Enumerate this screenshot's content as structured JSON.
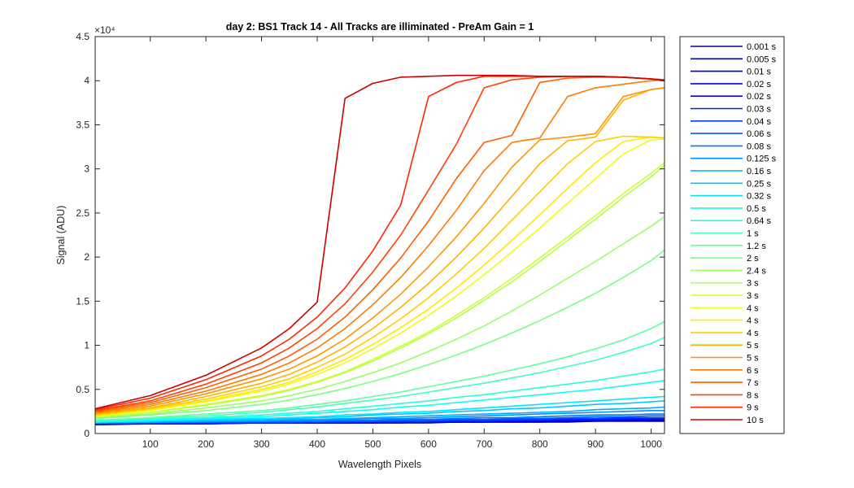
{
  "chart_data": {
    "type": "line",
    "title": "day 2: BS1  Track 14 - All Tracks are illiminated - PreAm Gain = 1",
    "xlabel": "Wavelength Pixels",
    "ylabel": "Signal (ADU)",
    "y_exponent": "×10⁴",
    "xlim": [
      1,
      1024
    ],
    "ylim": [
      0,
      4.5
    ],
    "xticks": [
      100,
      200,
      300,
      400,
      500,
      600,
      700,
      800,
      900,
      1000
    ],
    "yticks": [
      0,
      0.5,
      1,
      1.5,
      2,
      2.5,
      3,
      3.5,
      4,
      4.5
    ],
    "ytick_labels": [
      "0",
      "0.5",
      "1",
      "1.5",
      "2",
      "2.5",
      "3",
      "3.5",
      "4",
      "4.5"
    ],
    "legend_position": "outside-right",
    "grid": false,
    "x": [
      1,
      100,
      200,
      300,
      350,
      400,
      450,
      500,
      550,
      600,
      650,
      700,
      750,
      800,
      850,
      900,
      950,
      1000,
      1024
    ],
    "series": [
      {
        "name": "0.001 s",
        "color": "#00008f",
        "values": [
          0.1,
          0.11,
          0.11,
          0.12,
          0.12,
          0.12,
          0.12,
          0.12,
          0.12,
          0.12,
          0.13,
          0.13,
          0.13,
          0.13,
          0.13,
          0.14,
          0.14,
          0.14,
          0.14
        ]
      },
      {
        "name": "0.005 s",
        "color": "#0000a8",
        "values": [
          0.11,
          0.11,
          0.11,
          0.12,
          0.12,
          0.12,
          0.12,
          0.12,
          0.12,
          0.13,
          0.13,
          0.13,
          0.13,
          0.13,
          0.14,
          0.14,
          0.14,
          0.14,
          0.14
        ]
      },
      {
        "name": "0.01 s",
        "color": "#0000c4",
        "values": [
          0.11,
          0.11,
          0.12,
          0.12,
          0.12,
          0.12,
          0.12,
          0.12,
          0.13,
          0.13,
          0.13,
          0.13,
          0.14,
          0.14,
          0.14,
          0.14,
          0.15,
          0.15,
          0.15
        ]
      },
      {
        "name": "0.02 s",
        "color": "#0000e0",
        "values": [
          0.11,
          0.11,
          0.12,
          0.12,
          0.12,
          0.12,
          0.12,
          0.13,
          0.13,
          0.13,
          0.13,
          0.14,
          0.14,
          0.14,
          0.15,
          0.15,
          0.15,
          0.16,
          0.16
        ]
      },
      {
        "name": "0.02 s",
        "color": "#0004ff",
        "values": [
          0.11,
          0.12,
          0.12,
          0.12,
          0.12,
          0.12,
          0.13,
          0.13,
          0.13,
          0.13,
          0.14,
          0.14,
          0.14,
          0.15,
          0.15,
          0.15,
          0.16,
          0.16,
          0.16
        ]
      },
      {
        "name": "0.03 s",
        "color": "#0020ff",
        "values": [
          0.11,
          0.12,
          0.12,
          0.12,
          0.12,
          0.13,
          0.13,
          0.13,
          0.13,
          0.14,
          0.14,
          0.14,
          0.15,
          0.15,
          0.16,
          0.16,
          0.17,
          0.17,
          0.17
        ]
      },
      {
        "name": "0.04 s",
        "color": "#003cff",
        "values": [
          0.12,
          0.12,
          0.12,
          0.13,
          0.13,
          0.13,
          0.13,
          0.14,
          0.14,
          0.14,
          0.15,
          0.15,
          0.16,
          0.16,
          0.17,
          0.17,
          0.18,
          0.18,
          0.18
        ]
      },
      {
        "name": "0.06 s",
        "color": "#0058ff",
        "values": [
          0.12,
          0.12,
          0.13,
          0.13,
          0.13,
          0.14,
          0.14,
          0.14,
          0.15,
          0.15,
          0.16,
          0.16,
          0.17,
          0.17,
          0.18,
          0.19,
          0.19,
          0.2,
          0.2
        ]
      },
      {
        "name": "0.08 s",
        "color": "#0074ff",
        "values": [
          0.12,
          0.13,
          0.13,
          0.14,
          0.14,
          0.14,
          0.15,
          0.15,
          0.16,
          0.16,
          0.17,
          0.18,
          0.18,
          0.19,
          0.2,
          0.21,
          0.21,
          0.22,
          0.22
        ]
      },
      {
        "name": "0.125 s",
        "color": "#0090ff",
        "values": [
          0.12,
          0.13,
          0.14,
          0.14,
          0.15,
          0.15,
          0.16,
          0.17,
          0.17,
          0.18,
          0.19,
          0.2,
          0.21,
          0.22,
          0.23,
          0.24,
          0.25,
          0.26,
          0.26
        ]
      },
      {
        "name": "0.16 s",
        "color": "#00acff",
        "values": [
          0.12,
          0.13,
          0.14,
          0.15,
          0.16,
          0.16,
          0.17,
          0.18,
          0.19,
          0.2,
          0.21,
          0.22,
          0.23,
          0.24,
          0.25,
          0.27,
          0.28,
          0.29,
          0.3
        ]
      },
      {
        "name": "0.25 s",
        "color": "#00c8ff",
        "values": [
          0.13,
          0.14,
          0.15,
          0.16,
          0.17,
          0.18,
          0.19,
          0.21,
          0.22,
          0.23,
          0.25,
          0.26,
          0.28,
          0.29,
          0.31,
          0.33,
          0.34,
          0.36,
          0.37
        ]
      },
      {
        "name": "0.32 s",
        "color": "#00e4ff",
        "values": [
          0.13,
          0.14,
          0.16,
          0.17,
          0.18,
          0.19,
          0.21,
          0.22,
          0.24,
          0.25,
          0.27,
          0.29,
          0.31,
          0.33,
          0.35,
          0.37,
          0.39,
          0.41,
          0.42
        ]
      },
      {
        "name": "0.5 s",
        "color": "#0cfff4",
        "values": [
          0.13,
          0.15,
          0.17,
          0.19,
          0.21,
          0.23,
          0.25,
          0.27,
          0.3,
          0.32,
          0.35,
          0.38,
          0.41,
          0.44,
          0.47,
          0.5,
          0.54,
          0.58,
          0.6
        ]
      },
      {
        "name": "0.64 s",
        "color": "#28ffd8",
        "values": [
          0.14,
          0.16,
          0.18,
          0.21,
          0.23,
          0.25,
          0.28,
          0.31,
          0.34,
          0.37,
          0.41,
          0.44,
          0.48,
          0.52,
          0.56,
          0.6,
          0.65,
          0.7,
          0.73
        ]
      },
      {
        "name": "1 s",
        "color": "#44ffbc",
        "values": [
          0.15,
          0.17,
          0.2,
          0.24,
          0.27,
          0.3,
          0.34,
          0.38,
          0.42,
          0.47,
          0.52,
          0.57,
          0.63,
          0.69,
          0.76,
          0.83,
          0.92,
          1.02,
          1.09
        ]
      },
      {
        "name": "1.2 s",
        "color": "#60ffa0",
        "values": [
          0.15,
          0.18,
          0.22,
          0.26,
          0.29,
          0.33,
          0.37,
          0.42,
          0.47,
          0.53,
          0.59,
          0.65,
          0.72,
          0.79,
          0.87,
          0.96,
          1.06,
          1.19,
          1.27
        ]
      },
      {
        "name": "2 s",
        "color": "#7cff84",
        "values": [
          0.17,
          0.21,
          0.26,
          0.33,
          0.38,
          0.44,
          0.51,
          0.59,
          0.68,
          0.78,
          0.89,
          1.01,
          1.14,
          1.28,
          1.43,
          1.59,
          1.77,
          1.96,
          2.08
        ]
      },
      {
        "name": "2.4 s",
        "color": "#98ff68",
        "values": [
          0.18,
          0.22,
          0.29,
          0.37,
          0.43,
          0.5,
          0.59,
          0.69,
          0.8,
          0.93,
          1.07,
          1.22,
          1.39,
          1.57,
          1.76,
          1.95,
          2.15,
          2.35,
          2.46
        ]
      },
      {
        "name": "3 s",
        "color": "#b4ff4c",
        "values": [
          0.19,
          0.24,
          0.32,
          0.42,
          0.49,
          0.58,
          0.69,
          0.82,
          0.97,
          1.13,
          1.31,
          1.51,
          1.72,
          1.95,
          2.19,
          2.43,
          2.68,
          2.91,
          3.04
        ]
      },
      {
        "name": "3 s",
        "color": "#d0ff30",
        "values": [
          0.19,
          0.24,
          0.33,
          0.43,
          0.5,
          0.59,
          0.7,
          0.84,
          0.99,
          1.15,
          1.34,
          1.54,
          1.76,
          1.99,
          2.23,
          2.47,
          2.72,
          2.95,
          3.07
        ]
      },
      {
        "name": "4 s",
        "color": "#ecff14",
        "values": [
          0.2,
          0.26,
          0.36,
          0.48,
          0.56,
          0.67,
          0.8,
          0.96,
          1.14,
          1.34,
          1.56,
          1.8,
          2.06,
          2.33,
          2.61,
          2.89,
          3.17,
          3.33,
          3.34
        ]
      },
      {
        "name": "4 s",
        "color": "#ffea00",
        "values": [
          0.2,
          0.27,
          0.37,
          0.5,
          0.58,
          0.7,
          0.84,
          1.01,
          1.2,
          1.41,
          1.65,
          1.91,
          2.19,
          2.48,
          2.78,
          3.07,
          3.31,
          3.36,
          3.35
        ]
      },
      {
        "name": "4 s",
        "color": "#ffce00",
        "values": [
          0.21,
          0.28,
          0.39,
          0.53,
          0.62,
          0.75,
          0.9,
          1.09,
          1.3,
          1.54,
          1.81,
          2.1,
          2.42,
          2.74,
          3.06,
          3.31,
          3.37,
          3.36,
          3.35
        ]
      },
      {
        "name": "5 s",
        "color": "#ffb200",
        "values": [
          0.22,
          0.29,
          0.42,
          0.57,
          0.67,
          0.81,
          0.98,
          1.19,
          1.43,
          1.7,
          2.0,
          2.33,
          2.69,
          3.06,
          3.32,
          3.36,
          3.78,
          3.9,
          3.92
        ]
      },
      {
        "name": "5 s",
        "color": "#ff9600",
        "values": [
          0.23,
          0.31,
          0.45,
          0.62,
          0.73,
          0.88,
          1.07,
          1.31,
          1.58,
          1.89,
          2.23,
          2.61,
          3.02,
          3.33,
          3.36,
          3.4,
          3.82,
          3.9,
          3.92
        ]
      },
      {
        "name": "6 s",
        "color": "#ff7a00",
        "values": [
          0.24,
          0.33,
          0.48,
          0.67,
          0.8,
          0.97,
          1.19,
          1.46,
          1.77,
          2.13,
          2.53,
          2.98,
          3.3,
          3.35,
          3.82,
          3.92,
          3.96,
          4.0,
          4.01
        ]
      },
      {
        "name": "7 s",
        "color": "#ff5e00",
        "values": [
          0.25,
          0.35,
          0.52,
          0.73,
          0.88,
          1.07,
          1.32,
          1.63,
          1.99,
          2.41,
          2.89,
          3.3,
          3.38,
          3.98,
          4.03,
          4.04,
          4.04,
          4.02,
          4.0
        ]
      },
      {
        "name": "8 s",
        "color": "#ff4200",
        "values": [
          0.26,
          0.37,
          0.56,
          0.8,
          0.97,
          1.19,
          1.47,
          1.83,
          2.25,
          2.76,
          3.28,
          3.92,
          4.01,
          4.04,
          4.05,
          4.05,
          4.04,
          4.02,
          4.01
        ]
      },
      {
        "name": "9 s",
        "color": "#ff2600",
        "values": [
          0.27,
          0.4,
          0.61,
          0.88,
          1.07,
          1.32,
          1.65,
          2.07,
          2.59,
          3.82,
          3.98,
          4.05,
          4.05,
          4.05,
          4.05,
          4.05,
          4.04,
          4.02,
          4.01
        ]
      },
      {
        "name": "10 s",
        "color": "#cc0000",
        "values": [
          0.28,
          0.43,
          0.66,
          0.97,
          1.19,
          1.49,
          3.8,
          3.97,
          4.04,
          4.05,
          4.06,
          4.06,
          4.06,
          4.05,
          4.05,
          4.05,
          4.04,
          4.02,
          4.0
        ]
      }
    ]
  }
}
